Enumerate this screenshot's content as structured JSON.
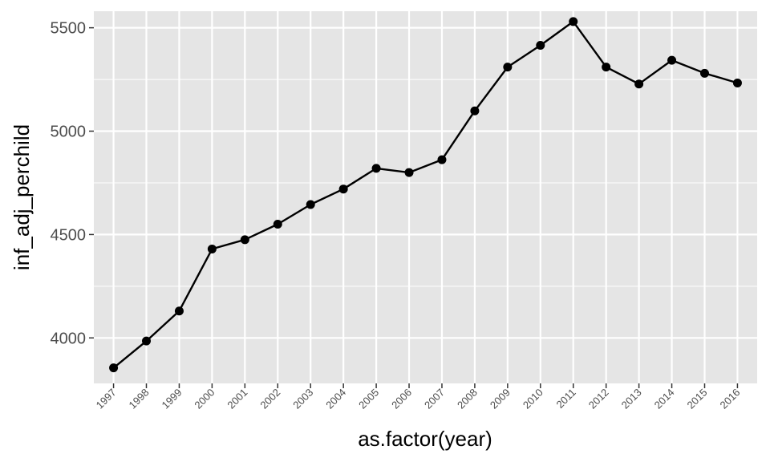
{
  "chart_data": {
    "type": "line",
    "xlabel": "as.factor(year)",
    "ylabel": "inf_adj_perchild",
    "categories": [
      "1997",
      "1998",
      "1999",
      "2000",
      "2001",
      "2002",
      "2003",
      "2004",
      "2005",
      "2006",
      "2007",
      "2008",
      "2009",
      "2010",
      "2011",
      "2012",
      "2013",
      "2014",
      "2015",
      "2016"
    ],
    "series": [
      {
        "values": [
          3855,
          3985,
          4130,
          4430,
          4475,
          4550,
          4645,
          4720,
          4820,
          4800,
          4862,
          5098,
          5310,
          5415,
          5530,
          5310,
          5228,
          5343,
          5280,
          5233
        ]
      }
    ],
    "y_ticks": [
      4000,
      4500,
      5000,
      5500
    ],
    "ylim": [
      3780,
      5580
    ],
    "grid": true,
    "colors": {
      "panel": "#e5e5e5",
      "grid": "#ffffff",
      "line": "#000000",
      "point": "#000000"
    }
  }
}
